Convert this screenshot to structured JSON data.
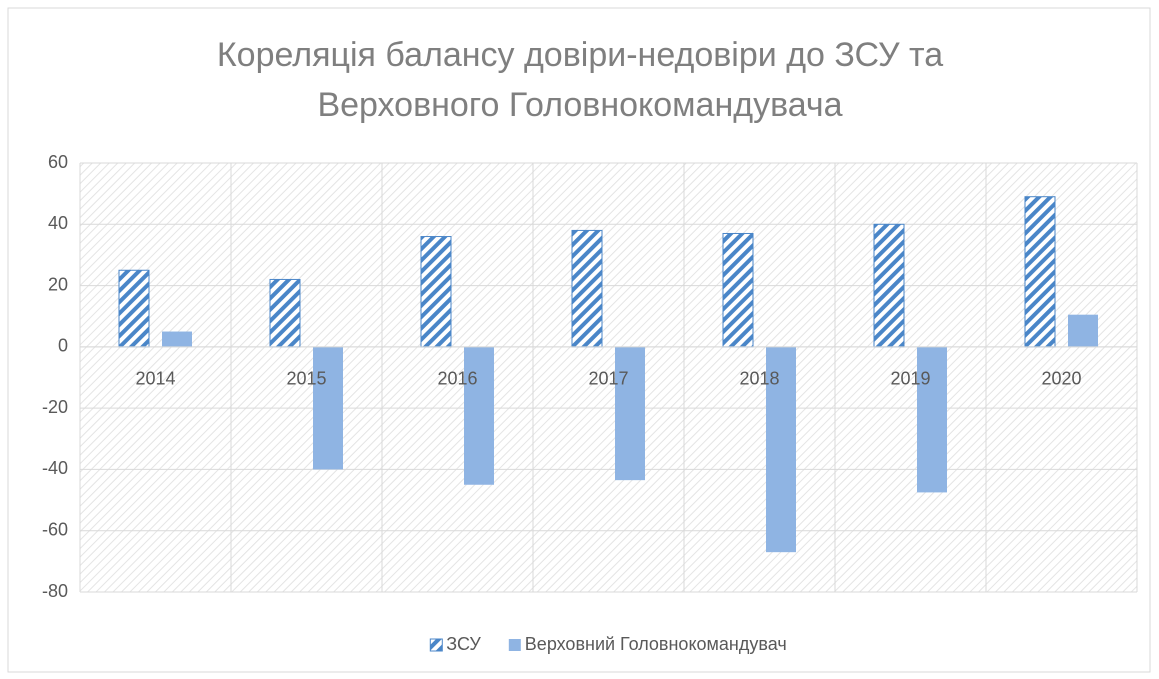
{
  "chart_data": {
    "type": "bar",
    "title": "Кореляція балансу довіри-недовіри до ЗСУ та Верховного Головнокомандувача",
    "categories": [
      "2014",
      "2015",
      "2016",
      "2017",
      "2018",
      "2019",
      "2020"
    ],
    "series": [
      {
        "name": "ЗСУ",
        "color": "#4a86c8",
        "pattern": "stripes",
        "values": [
          25,
          22,
          36,
          38,
          37,
          40,
          49
        ]
      },
      {
        "name": "Верховний Головнокомандувач",
        "color": "#8fb4e3",
        "values": [
          5,
          -40,
          -45,
          -43.5,
          -67,
          -47.5,
          10.5
        ]
      }
    ],
    "ylim": [
      -80,
      60
    ],
    "yticks": [
      -80,
      -60,
      -40,
      -20,
      0,
      20,
      40,
      60
    ],
    "grid": true,
    "legend": "bottom"
  }
}
